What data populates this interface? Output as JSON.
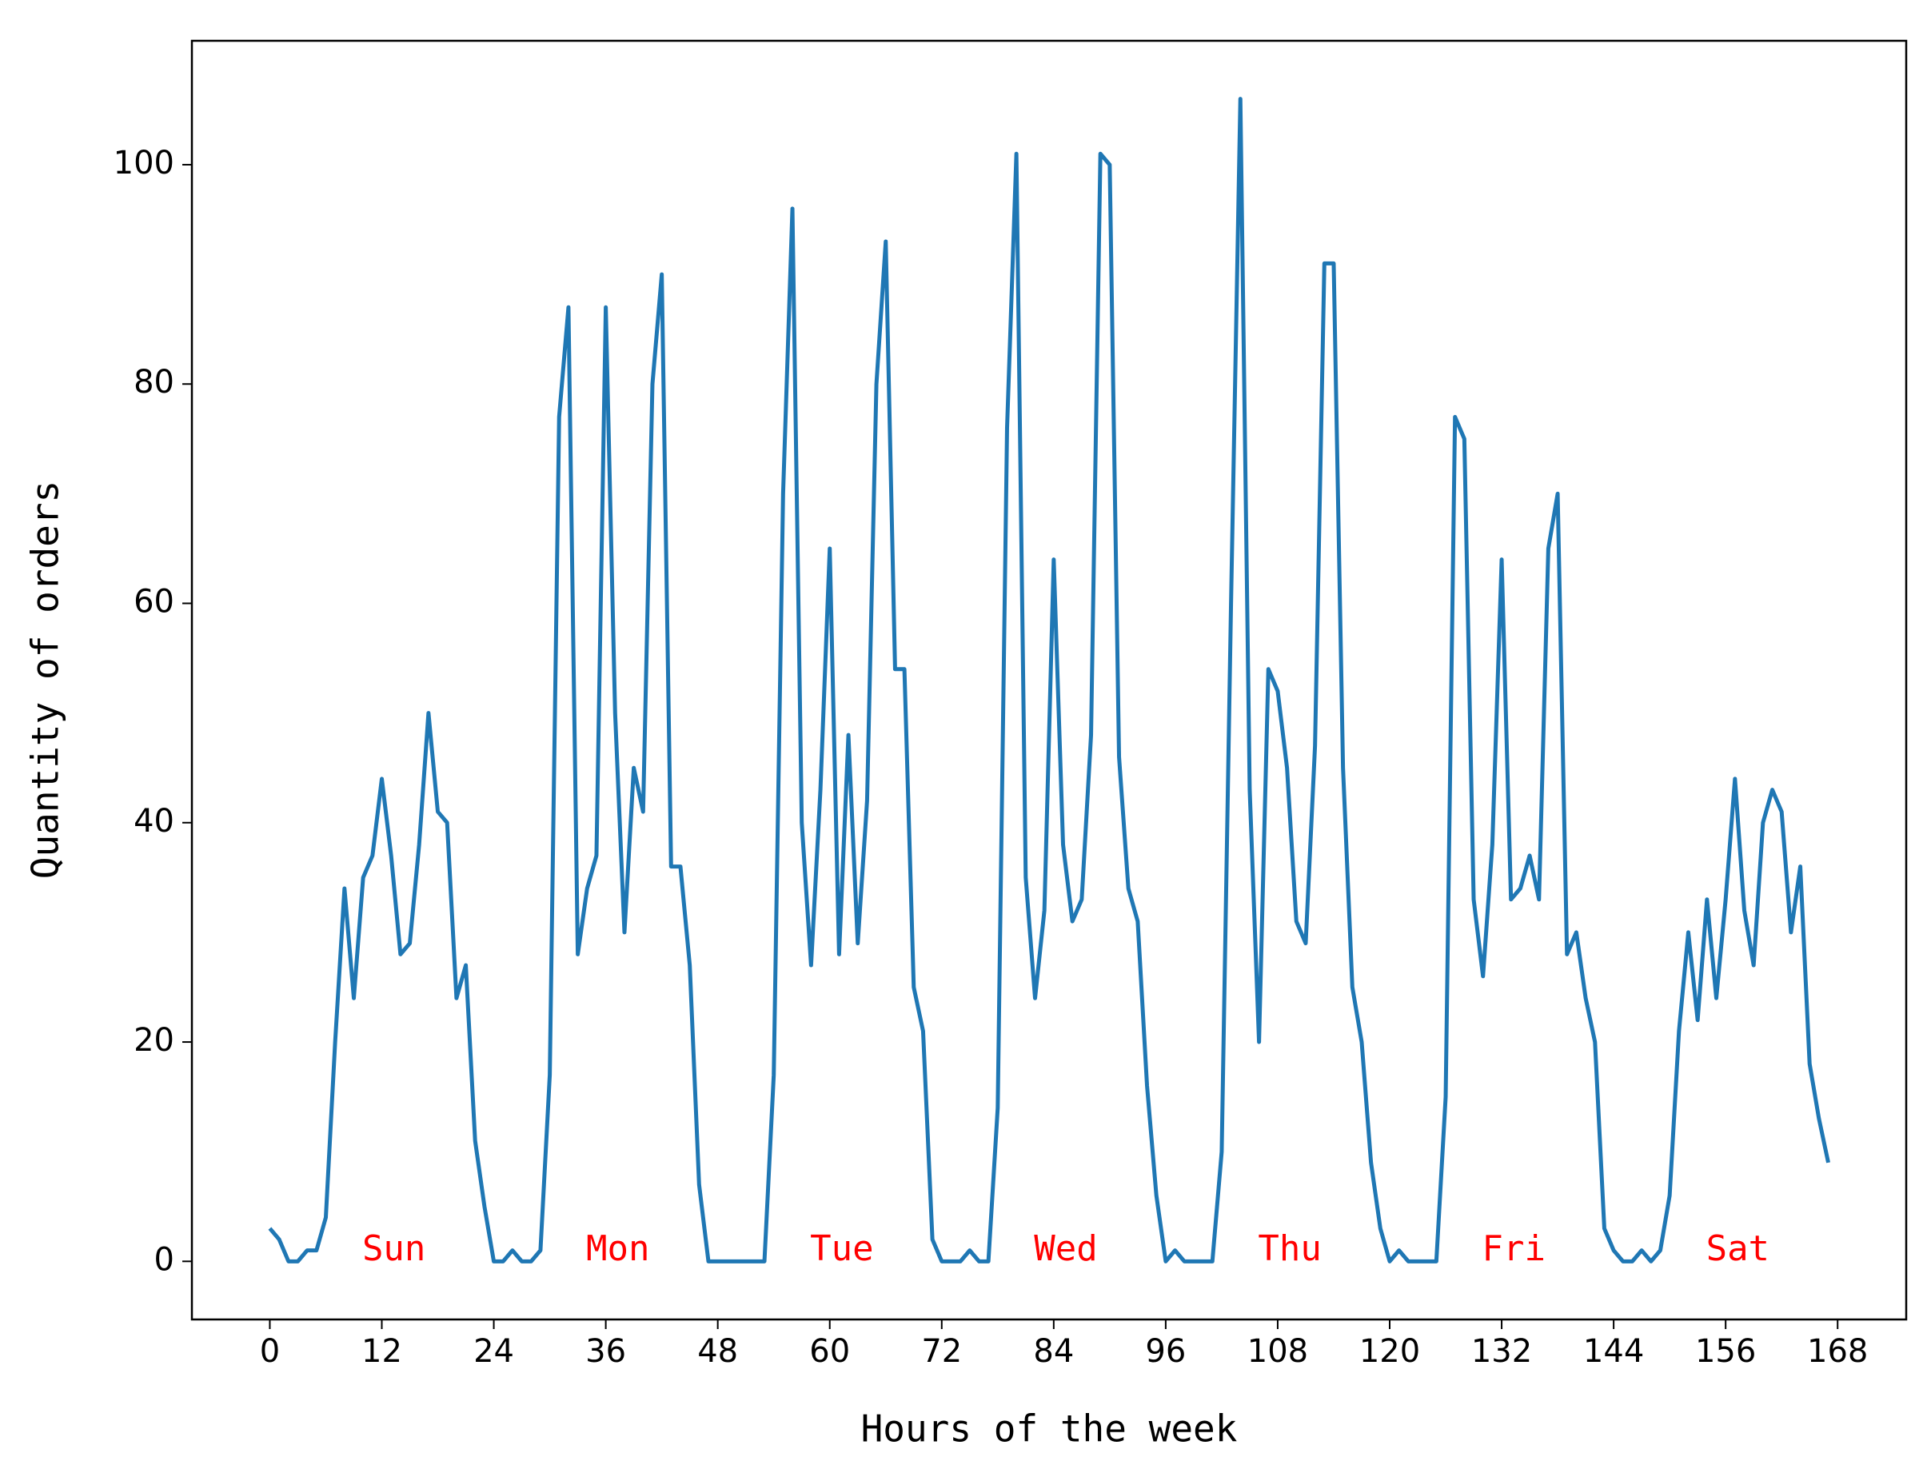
{
  "chart_data": {
    "type": "line",
    "xlabel": "Hours of the week",
    "ylabel": "Quantity of orders",
    "x": [
      0,
      1,
      2,
      3,
      4,
      5,
      6,
      7,
      8,
      9,
      10,
      11,
      12,
      13,
      14,
      15,
      16,
      17,
      18,
      19,
      20,
      21,
      22,
      23,
      24,
      25,
      26,
      27,
      28,
      29,
      30,
      31,
      32,
      33,
      34,
      35,
      36,
      37,
      38,
      39,
      40,
      41,
      42,
      43,
      44,
      45,
      46,
      47,
      48,
      49,
      50,
      51,
      52,
      53,
      54,
      55,
      56,
      57,
      58,
      59,
      60,
      61,
      62,
      63,
      64,
      65,
      66,
      67,
      68,
      69,
      70,
      71,
      72,
      73,
      74,
      75,
      76,
      77,
      78,
      79,
      80,
      81,
      82,
      83,
      84,
      85,
      86,
      87,
      88,
      89,
      90,
      91,
      92,
      93,
      94,
      95,
      96,
      97,
      98,
      99,
      100,
      101,
      102,
      103,
      104,
      105,
      106,
      107,
      108,
      109,
      110,
      111,
      112,
      113,
      114,
      115,
      116,
      117,
      118,
      119,
      120,
      121,
      122,
      123,
      124,
      125,
      126,
      127,
      128,
      129,
      130,
      131,
      132,
      133,
      134,
      135,
      136,
      137,
      138,
      139,
      140,
      141,
      142,
      143,
      144,
      145,
      146,
      147,
      148,
      149,
      150,
      151,
      152,
      153,
      154,
      155,
      156,
      157,
      158,
      159,
      160,
      161,
      162,
      163,
      164,
      165,
      166,
      167
    ],
    "series": [
      {
        "color": "#1f77b4",
        "values": [
          3,
          2,
          0,
          0,
          1,
          1,
          4,
          20,
          34,
          24,
          35,
          37,
          44,
          37,
          28,
          29,
          38,
          50,
          41,
          40,
          24,
          27,
          11,
          5,
          0,
          0,
          1,
          0,
          0,
          1,
          17,
          77,
          87,
          28,
          34,
          37,
          87,
          50,
          30,
          45,
          41,
          80,
          90,
          36,
          36,
          27,
          7,
          0,
          0,
          0,
          0,
          0,
          0,
          0,
          17,
          70,
          96,
          40,
          27,
          43,
          65,
          28,
          48,
          29,
          42,
          80,
          93,
          54,
          54,
          25,
          21,
          2,
          0,
          0,
          0,
          1,
          0,
          0,
          14,
          76,
          101,
          35,
          24,
          32,
          64,
          38,
          31,
          33,
          48,
          101,
          100,
          46,
          34,
          31,
          16,
          6,
          0,
          1,
          0,
          0,
          0,
          0,
          10,
          60,
          106,
          43,
          20,
          54,
          52,
          45,
          31,
          29,
          47,
          91,
          91,
          45,
          25,
          20,
          9,
          3,
          0,
          1,
          0,
          0,
          0,
          0,
          15,
          77,
          75,
          33,
          26,
          38,
          64,
          33,
          34,
          37,
          33,
          65,
          70,
          28,
          30,
          24,
          20,
          3,
          1,
          0,
          0,
          1,
          0,
          1,
          6,
          21,
          30,
          22,
          33,
          24,
          33,
          44,
          32,
          27,
          40,
          43,
          41,
          30,
          36,
          18,
          13,
          9
        ]
      }
    ],
    "xlim": [
      -8.35,
      175.35
    ],
    "ylim": [
      -5.3,
      111.3
    ],
    "xticks": [
      0,
      12,
      24,
      36,
      48,
      60,
      72,
      84,
      96,
      108,
      120,
      132,
      144,
      156,
      168
    ],
    "yticks": [
      0,
      20,
      40,
      60,
      80,
      100
    ],
    "annotations": [
      "Sun",
      "Mon",
      "Tue",
      "Wed",
      "Thu",
      "Fri",
      "Sat"
    ],
    "annotation_color": "#ff0000"
  }
}
